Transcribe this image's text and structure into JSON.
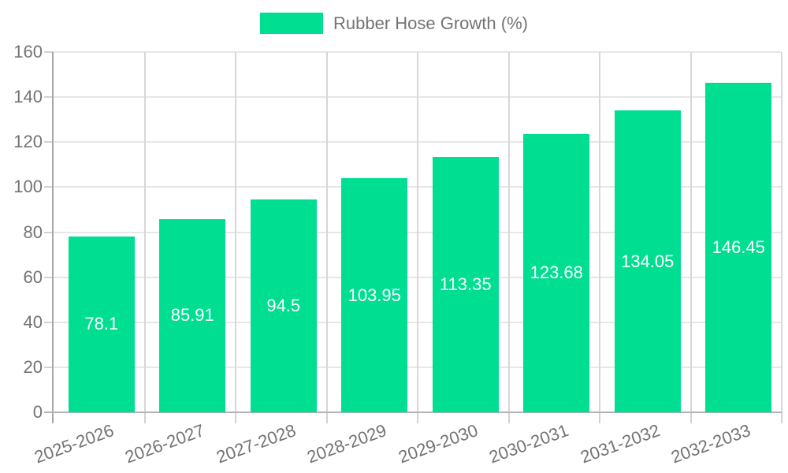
{
  "legend": {
    "items": [
      {
        "label": "Rubber Hose Growth (%)",
        "color": "#00DE92"
      }
    ]
  },
  "chart_data": {
    "type": "bar",
    "title": "Rubber Hose Growth (%)",
    "categories": [
      "2025-2026",
      "2026-2027",
      "2027-2028",
      "2028-2029",
      "2029-2030",
      "2030-2031",
      "2031-2032",
      "2032-2033"
    ],
    "series": [
      {
        "name": "Rubber Hose Growth (%)",
        "color": "#00DE92",
        "values": [
          78.1,
          85.91,
          94.5,
          103.95,
          113.35,
          123.68,
          134.05,
          146.45
        ]
      }
    ],
    "value_labels": [
      "78.1",
      "85.91",
      "94.5",
      "103.95",
      "113.35",
      "123.68",
      "134.05",
      "146.45"
    ],
    "xlabel": "",
    "ylabel": "",
    "ylim": [
      0,
      160
    ],
    "ytick_step": 20,
    "ytick_labels": [
      "0",
      "20",
      "40",
      "60",
      "80",
      "100",
      "120",
      "140",
      "160"
    ],
    "grid": true,
    "legend_position": "top",
    "value_label_position": "center-of-bar",
    "colors": {
      "bar": "#00DE92",
      "y_axis_line": "#a8a8a8",
      "x_axis_line": "#b3b3b3",
      "grid_horizontal": "#e7e7e7",
      "grid_vertical": "#d7d7d7",
      "tick": "#d2d2d2",
      "axis_text": "#737373",
      "value_text": "#ffffff"
    }
  }
}
